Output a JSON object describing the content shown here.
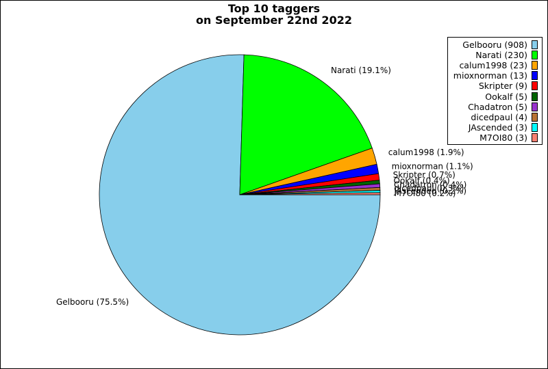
{
  "chart_data": {
    "type": "pie",
    "title": "Top 10 taggers",
    "subtitle": "on September 22nd 2022",
    "slices": [
      {
        "name": "Gelbooru",
        "value": 908,
        "percent_label": "Gelbooru (75.5%)",
        "legend_label": "Gelbooru (908)",
        "color": "#87ceeb"
      },
      {
        "name": "Narati",
        "value": 230,
        "percent_label": "Narati (19.1%)",
        "legend_label": "Narati (230)",
        "color": "#00ff00"
      },
      {
        "name": "calum1998",
        "value": 23,
        "percent_label": "calum1998 (1.9%)",
        "legend_label": "calum1998 (23)",
        "color": "#ffa500"
      },
      {
        "name": "mioxnorman",
        "value": 13,
        "percent_label": "mioxnorman (1.1%)",
        "legend_label": "mioxnorman (13)",
        "color": "#0000ff"
      },
      {
        "name": "Skripter",
        "value": 9,
        "percent_label": "Skripter (0.7%)",
        "legend_label": "Skripter (9)",
        "color": "#ff0000"
      },
      {
        "name": "Ookalf",
        "value": 5,
        "percent_label": "Ookalf (0.4%)",
        "legend_label": "Ookalf (5)",
        "color": "#006400"
      },
      {
        "name": "Chadatron",
        "value": 5,
        "percent_label": "Chadatron (0.4%)",
        "legend_label": "Chadatron (5)",
        "color": "#9932cc"
      },
      {
        "name": "dicedpaul",
        "value": 4,
        "percent_label": "dicedpaul (0.3%)",
        "legend_label": "dicedpaul (4)",
        "color": "#b87333"
      },
      {
        "name": "JAscended",
        "value": 3,
        "percent_label": "JAscended (0.2%)",
        "legend_label": "JAscended (3)",
        "color": "#00ffff"
      },
      {
        "name": "M7OI80",
        "value": 3,
        "percent_label": "M7OI80 (0.2%)",
        "legend_label": "M7OI80 (3)",
        "color": "#fa8072"
      }
    ],
    "legend_placement": "top-right"
  }
}
